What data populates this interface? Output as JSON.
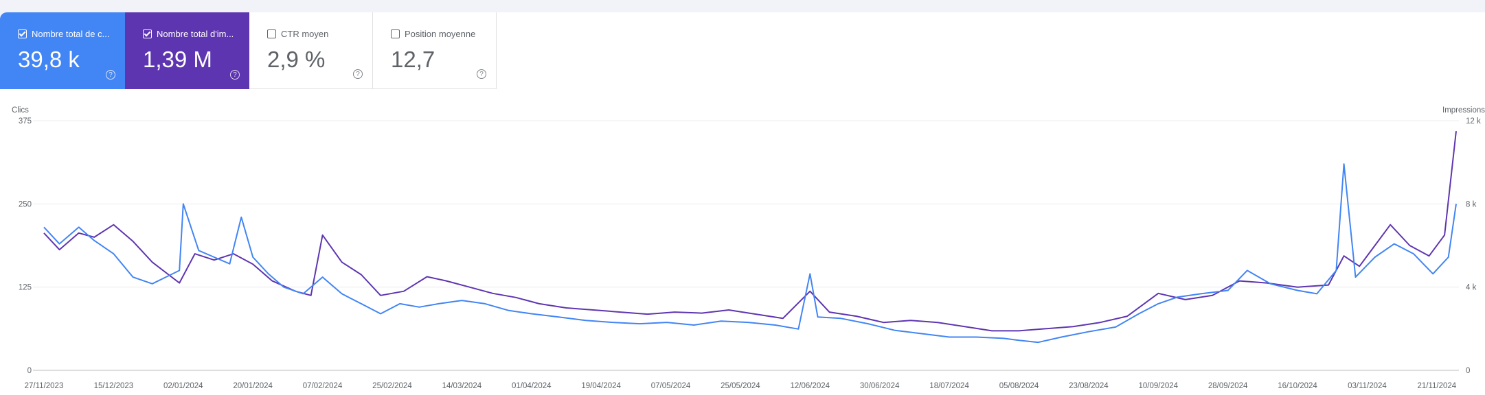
{
  "metrics": [
    {
      "label": "Nombre total de c...",
      "value": "39,8 k",
      "selected": true,
      "color": "#4285f4"
    },
    {
      "label": "Nombre total d'im...",
      "value": "1,39 M",
      "selected": true,
      "color": "#5e35b1"
    },
    {
      "label": "CTR moyen",
      "value": "2,9 %",
      "selected": false
    },
    {
      "label": "Position moyenne",
      "value": "12,7",
      "selected": false
    }
  ],
  "help_glyph": "?",
  "chart_data": {
    "type": "line",
    "left_axis": {
      "title": "Clics",
      "min": 0,
      "max": 375,
      "ticks": [
        0,
        125,
        250,
        375
      ],
      "tick_labels": [
        "0",
        "125",
        "250",
        "375"
      ]
    },
    "right_axis": {
      "title": "Impressions",
      "min": 0,
      "max": 12000,
      "ticks": [
        0,
        4000,
        8000,
        12000
      ],
      "tick_labels": [
        "0",
        "4 k",
        "8 k",
        "12 k"
      ]
    },
    "x_axis": {
      "start": "2023-11-27",
      "end": "2024-11-26",
      "ticks": [
        "2023-11-27",
        "2023-12-15",
        "2024-01-02",
        "2024-01-20",
        "2024-02-07",
        "2024-02-25",
        "2024-03-14",
        "2024-04-01",
        "2024-04-19",
        "2024-05-07",
        "2024-05-25",
        "2024-06-12",
        "2024-06-30",
        "2024-07-18",
        "2024-08-05",
        "2024-08-23",
        "2024-09-10",
        "2024-09-28",
        "2024-10-16",
        "2024-11-03",
        "2024-11-21"
      ],
      "tick_labels": [
        "27/11/2023",
        "15/12/2023",
        "02/01/2024",
        "20/01/2024",
        "07/02/2024",
        "25/02/2024",
        "14/03/2024",
        "01/04/2024",
        "19/04/2024",
        "07/05/2024",
        "25/05/2024",
        "12/06/2024",
        "30/06/2024",
        "18/07/2024",
        "05/08/2024",
        "23/08/2024",
        "10/09/2024",
        "28/09/2024",
        "16/10/2024",
        "03/11/2024",
        "21/11/2024"
      ]
    },
    "grid": true,
    "series": [
      {
        "name": "Nombre total de c...",
        "axis": "left",
        "color": "#4285f4",
        "points": [
          [
            "2023-11-27",
            215
          ],
          [
            "2023-12-01",
            190
          ],
          [
            "2023-12-06",
            215
          ],
          [
            "2023-12-10",
            195
          ],
          [
            "2023-12-15",
            175
          ],
          [
            "2023-12-20",
            140
          ],
          [
            "2023-12-25",
            130
          ],
          [
            "2024-01-01",
            150
          ],
          [
            "2024-01-02",
            250
          ],
          [
            "2024-01-06",
            180
          ],
          [
            "2024-01-10",
            170
          ],
          [
            "2024-01-14",
            160
          ],
          [
            "2024-01-17",
            230
          ],
          [
            "2024-01-20",
            170
          ],
          [
            "2024-01-24",
            145
          ],
          [
            "2024-01-28",
            125
          ],
          [
            "2024-02-02",
            115
          ],
          [
            "2024-02-07",
            140
          ],
          [
            "2024-02-12",
            115
          ],
          [
            "2024-02-17",
            100
          ],
          [
            "2024-02-22",
            85
          ],
          [
            "2024-02-27",
            100
          ],
          [
            "2024-03-03",
            95
          ],
          [
            "2024-03-08",
            100
          ],
          [
            "2024-03-14",
            105
          ],
          [
            "2024-03-20",
            100
          ],
          [
            "2024-03-26",
            90
          ],
          [
            "2024-04-01",
            85
          ],
          [
            "2024-04-08",
            80
          ],
          [
            "2024-04-15",
            75
          ],
          [
            "2024-04-22",
            72
          ],
          [
            "2024-04-29",
            70
          ],
          [
            "2024-05-06",
            72
          ],
          [
            "2024-05-13",
            68
          ],
          [
            "2024-05-20",
            74
          ],
          [
            "2024-05-27",
            72
          ],
          [
            "2024-06-03",
            68
          ],
          [
            "2024-06-09",
            62
          ],
          [
            "2024-06-12",
            145
          ],
          [
            "2024-06-14",
            80
          ],
          [
            "2024-06-20",
            78
          ],
          [
            "2024-06-27",
            70
          ],
          [
            "2024-07-04",
            60
          ],
          [
            "2024-07-11",
            55
          ],
          [
            "2024-07-18",
            50
          ],
          [
            "2024-07-25",
            50
          ],
          [
            "2024-08-01",
            48
          ],
          [
            "2024-08-05",
            45
          ],
          [
            "2024-08-10",
            42
          ],
          [
            "2024-08-16",
            50
          ],
          [
            "2024-08-23",
            58
          ],
          [
            "2024-08-30",
            65
          ],
          [
            "2024-09-05",
            85
          ],
          [
            "2024-09-10",
            100
          ],
          [
            "2024-09-15",
            110
          ],
          [
            "2024-09-21",
            115
          ],
          [
            "2024-09-28",
            120
          ],
          [
            "2024-10-03",
            150
          ],
          [
            "2024-10-09",
            130
          ],
          [
            "2024-10-16",
            120
          ],
          [
            "2024-10-21",
            115
          ],
          [
            "2024-10-26",
            150
          ],
          [
            "2024-10-28",
            310
          ],
          [
            "2024-10-31",
            140
          ],
          [
            "2024-11-05",
            170
          ],
          [
            "2024-11-10",
            190
          ],
          [
            "2024-11-15",
            175
          ],
          [
            "2024-11-20",
            145
          ],
          [
            "2024-11-24",
            170
          ],
          [
            "2024-11-26",
            250
          ]
        ]
      },
      {
        "name": "Nombre total d'im...",
        "axis": "right",
        "color": "#5e35b1",
        "points": [
          [
            "2023-11-27",
            6600
          ],
          [
            "2023-12-01",
            5800
          ],
          [
            "2023-12-06",
            6600
          ],
          [
            "2023-12-10",
            6400
          ],
          [
            "2023-12-15",
            7000
          ],
          [
            "2023-12-20",
            6200
          ],
          [
            "2023-12-25",
            5200
          ],
          [
            "2024-01-01",
            4200
          ],
          [
            "2024-01-05",
            5600
          ],
          [
            "2024-01-10",
            5300
          ],
          [
            "2024-01-15",
            5600
          ],
          [
            "2024-01-20",
            5100
          ],
          [
            "2024-01-25",
            4300
          ],
          [
            "2024-01-31",
            3800
          ],
          [
            "2024-02-04",
            3600
          ],
          [
            "2024-02-07",
            6500
          ],
          [
            "2024-02-12",
            5200
          ],
          [
            "2024-02-17",
            4600
          ],
          [
            "2024-02-22",
            3600
          ],
          [
            "2024-02-28",
            3800
          ],
          [
            "2024-03-05",
            4500
          ],
          [
            "2024-03-10",
            4300
          ],
          [
            "2024-03-16",
            4000
          ],
          [
            "2024-03-22",
            3700
          ],
          [
            "2024-03-28",
            3500
          ],
          [
            "2024-04-03",
            3200
          ],
          [
            "2024-04-10",
            3000
          ],
          [
            "2024-04-17",
            2900
          ],
          [
            "2024-04-24",
            2800
          ],
          [
            "2024-05-01",
            2700
          ],
          [
            "2024-05-08",
            2800
          ],
          [
            "2024-05-15",
            2750
          ],
          [
            "2024-05-22",
            2900
          ],
          [
            "2024-05-29",
            2700
          ],
          [
            "2024-06-05",
            2500
          ],
          [
            "2024-06-12",
            3800
          ],
          [
            "2024-06-17",
            2800
          ],
          [
            "2024-06-24",
            2600
          ],
          [
            "2024-07-01",
            2300
          ],
          [
            "2024-07-08",
            2400
          ],
          [
            "2024-07-15",
            2300
          ],
          [
            "2024-07-22",
            2100
          ],
          [
            "2024-07-29",
            1900
          ],
          [
            "2024-08-05",
            1900
          ],
          [
            "2024-08-12",
            2000
          ],
          [
            "2024-08-19",
            2100
          ],
          [
            "2024-08-26",
            2300
          ],
          [
            "2024-09-02",
            2600
          ],
          [
            "2024-09-10",
            3700
          ],
          [
            "2024-09-17",
            3400
          ],
          [
            "2024-09-24",
            3600
          ],
          [
            "2024-10-01",
            4300
          ],
          [
            "2024-10-08",
            4200
          ],
          [
            "2024-10-16",
            4000
          ],
          [
            "2024-10-24",
            4100
          ],
          [
            "2024-10-28",
            5500
          ],
          [
            "2024-11-01",
            5000
          ],
          [
            "2024-11-05",
            6000
          ],
          [
            "2024-11-09",
            7000
          ],
          [
            "2024-11-14",
            6000
          ],
          [
            "2024-11-19",
            5500
          ],
          [
            "2024-11-23",
            6500
          ],
          [
            "2024-11-26",
            11500
          ]
        ]
      }
    ]
  }
}
